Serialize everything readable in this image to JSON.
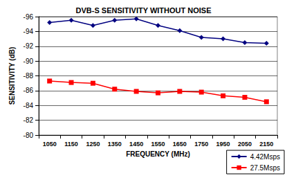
{
  "chart_data": {
    "type": "line",
    "title": "DVB-S SENSITIVITY WITHOUT NOISE",
    "x_label": "FREQUENCY (MHz)",
    "y_label": "SENSITIVITY (dB)",
    "categories": [
      "1050",
      "1150",
      "1250",
      "1350",
      "1450",
      "1550",
      "1650",
      "1750",
      "1950",
      "2050",
      "2150"
    ],
    "series": [
      {
        "name": "4.42Msps",
        "color": "#000080",
        "marker": "diamond",
        "values": [
          -95.2,
          -95.5,
          -94.8,
          -95.5,
          -95.7,
          -94.8,
          -94.1,
          -93.2,
          -93.0,
          -92.5,
          -92.4
        ]
      },
      {
        "name": "27.5Msps",
        "color": "#ff0000",
        "marker": "square",
        "values": [
          -87.3,
          -87.1,
          -87.0,
          -86.2,
          -85.9,
          -85.7,
          -85.9,
          -85.8,
          -85.3,
          -85.1,
          -84.5
        ]
      }
    ],
    "ylim": [
      -80,
      -96
    ],
    "yticks": [
      -80,
      -82,
      -84,
      -86,
      -88,
      -90,
      -92,
      -94,
      -96
    ],
    "grid": true,
    "legend": "lower right"
  }
}
